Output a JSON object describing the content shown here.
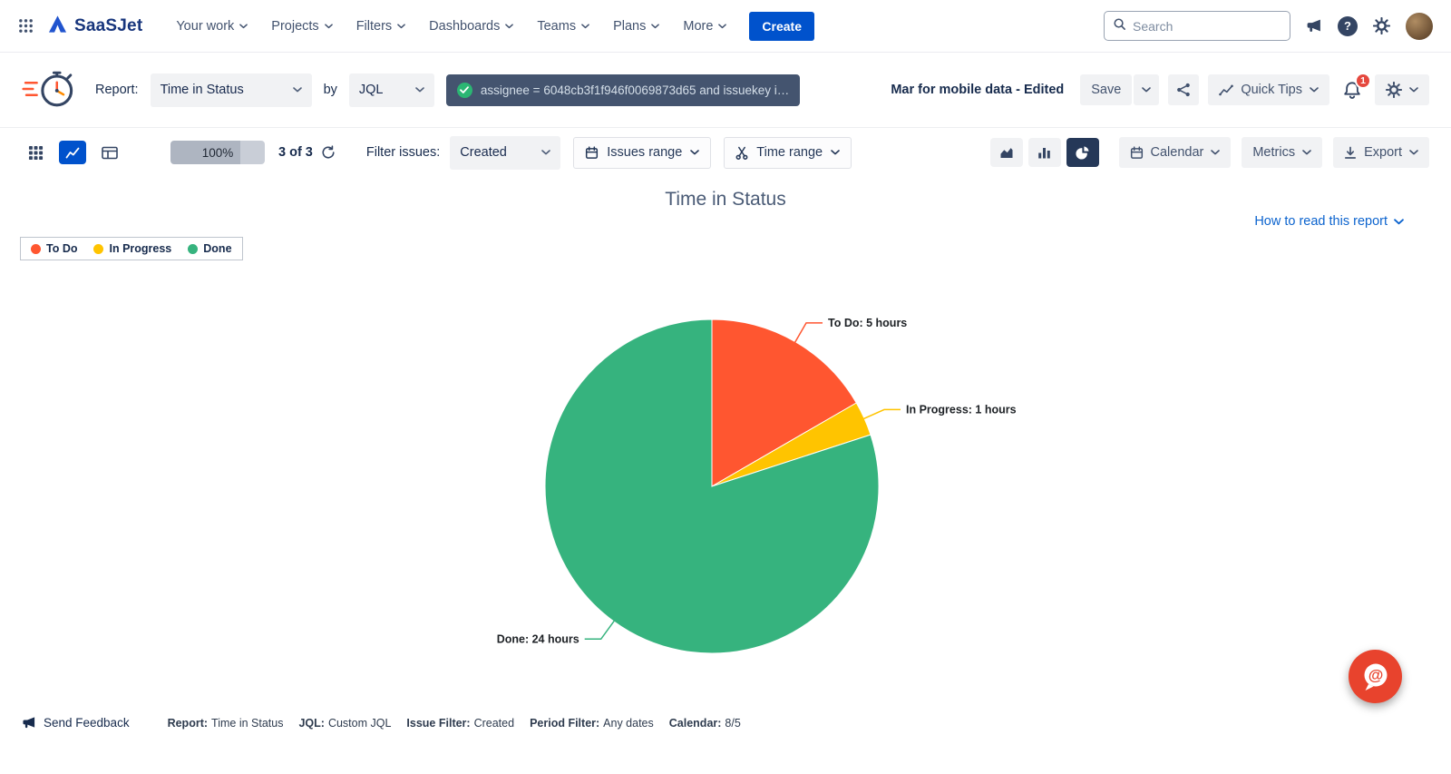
{
  "topnav": {
    "brand": "SaaSJet",
    "items": [
      {
        "label": "Your work"
      },
      {
        "label": "Projects"
      },
      {
        "label": "Filters"
      },
      {
        "label": "Dashboards"
      },
      {
        "label": "Teams"
      },
      {
        "label": "Plans"
      },
      {
        "label": "More"
      }
    ],
    "create_label": "Create",
    "search_placeholder": "Search"
  },
  "report_bar": {
    "report_label": "Report:",
    "report_value": "Time in Status",
    "by_label": "by",
    "jql_mode": "JQL",
    "jql_query": "assignee = 6048cb3f1f946f0069873d65 and issuekey i…",
    "doc_title": "Mar for mobile data - Edited",
    "save_label": "Save",
    "quick_tips_label": "Quick Tips",
    "notification_count": "1"
  },
  "toolbar": {
    "progress_value": "100%",
    "issues_count": "3 of 3",
    "filter_issues_label": "Filter issues:",
    "filter_value": "Created",
    "issues_range_label": "Issues range",
    "time_range_label": "Time range",
    "calendar_label": "Calendar",
    "metrics_label": "Metrics",
    "export_label": "Export"
  },
  "chart": {
    "how_to_read_label": "How to read this report"
  },
  "chart_data": {
    "type": "pie",
    "title": "Time in Status",
    "unit": "hours",
    "legend_position": "top-left",
    "direction": "clockwise",
    "start_angle_deg": 0,
    "slices": [
      {
        "label": "To Do",
        "value": 5,
        "unit": "hours",
        "data_label": "To Do: 5 hours",
        "color": "#FF5630"
      },
      {
        "label": "In Progress",
        "value": 1,
        "unit": "hours",
        "data_label": "In Progress: 1 hours",
        "color": "#FFC400"
      },
      {
        "label": "Done",
        "value": 24,
        "unit": "hours",
        "data_label": "Done: 24 hours",
        "color": "#36B37E"
      }
    ]
  },
  "footer": {
    "send_feedback_label": "Send Feedback",
    "items": [
      {
        "label": "Report:",
        "value": "Time in Status"
      },
      {
        "label": "JQL:",
        "value": "Custom JQL"
      },
      {
        "label": "Issue Filter:",
        "value": "Created"
      },
      {
        "label": "Period Filter:",
        "value": "Any dates"
      },
      {
        "label": "Calendar:",
        "value": "8/5"
      }
    ]
  },
  "colors": {
    "accent_blue": "#0052CC",
    "selected_chart_button_bg": "#253858",
    "chat_widget_red": "#E8432D"
  }
}
